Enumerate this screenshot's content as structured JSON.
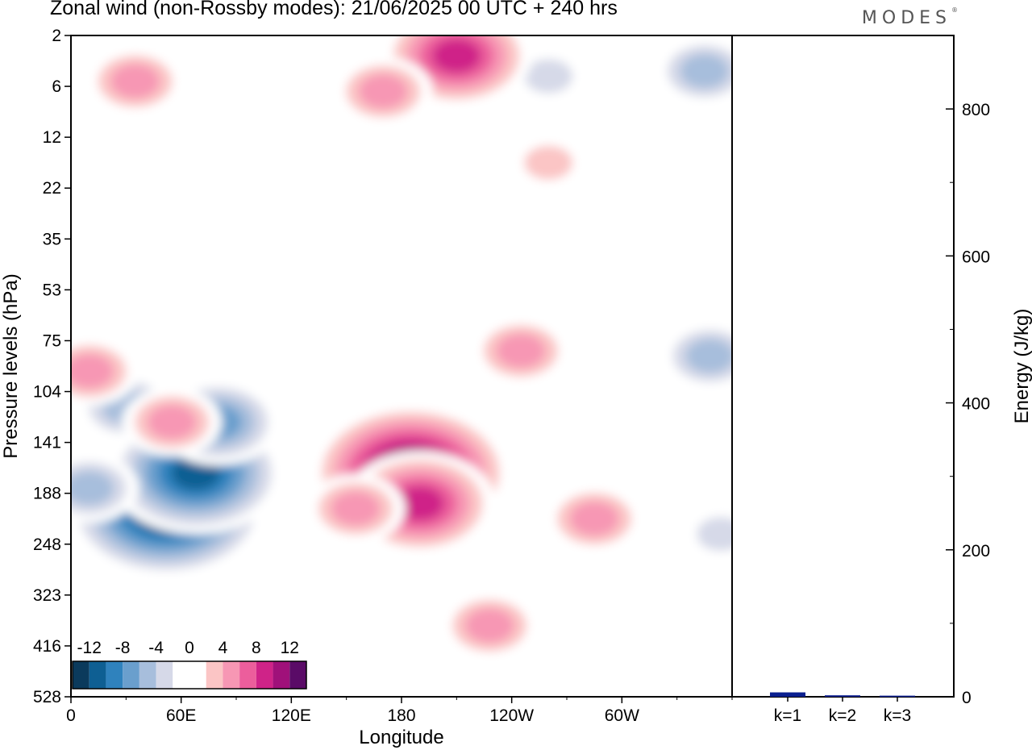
{
  "header": {
    "title": "Zonal wind (non-Rossby modes):  21/06/2025  00 UTC  + 240 hrs",
    "brand": "MODES",
    "brand_mark": "®"
  },
  "colors": {
    "levels": [
      -14,
      -12,
      -10,
      -8,
      -6,
      -4,
      -2,
      0,
      2,
      4,
      6,
      8,
      10,
      12,
      14
    ],
    "fills": [
      "#0b3a5c",
      "#0e5f93",
      "#2f82bd",
      "#6a9fcd",
      "#a7bedc",
      "#d6d9e8",
      "#ffffff",
      "#ffffff",
      "#fbc5c5",
      "#f797b4",
      "#ec5e9c",
      "#cf2388",
      "#a0117a",
      "#5a0b67"
    ],
    "bar": "#0a1f8f"
  },
  "chart_data": [
    {
      "type": "heatmap",
      "title": "Zonal wind (non-Rossby modes):  21/06/2025  00 UTC  + 240 hrs",
      "xlabel": "Longitude",
      "ylabel": "Pressure levels (hPa)",
      "x_ticks": [
        "0",
        "60E",
        "120E",
        "180",
        "120W",
        "60W"
      ],
      "x_tick_values": [
        0,
        60,
        120,
        180,
        240,
        300
      ],
      "xlim": [
        0,
        360
      ],
      "y_ticks": [
        "2",
        "6",
        "12",
        "22",
        "35",
        "53",
        "75",
        "104",
        "141",
        "188",
        "248",
        "323",
        "416",
        "528"
      ],
      "colorbar": {
        "labels": [
          "-12",
          "-8",
          "-4",
          "0",
          "4",
          "8",
          "12"
        ],
        "label_values": [
          -12,
          -8,
          -4,
          0,
          4,
          8,
          12
        ],
        "levels": [
          -14,
          -12,
          -10,
          -8,
          -6,
          -4,
          -2,
          0,
          2,
          4,
          6,
          8,
          10,
          12,
          14
        ]
      },
      "features": [
        {
          "lon": 52,
          "level": 9.3,
          "value": -14
        },
        {
          "lon": 68,
          "level": 8.6,
          "value": -12
        },
        {
          "lon": 80,
          "level": 7.6,
          "value": -8
        },
        {
          "lon": 30,
          "level": 7.3,
          "value": -6
        },
        {
          "lon": 10,
          "level": 8.9,
          "value": -6
        },
        {
          "lon": 115,
          "level": 10.5,
          "value": -2
        },
        {
          "lon": 160,
          "level": 12.5,
          "value": -2
        },
        {
          "lon": 252,
          "level": 12.0,
          "value": -2
        },
        {
          "lon": 354,
          "level": 9.8,
          "value": -4
        },
        {
          "lon": 348,
          "level": 6.3,
          "value": -6
        },
        {
          "lon": 345,
          "level": 0.7,
          "value": -6
        },
        {
          "lon": 260,
          "level": 0.8,
          "value": -4
        },
        {
          "lon": 170,
          "level": 2.0,
          "value": -2
        },
        {
          "lon": 20,
          "level": 2.5,
          "value": -2
        },
        {
          "lon": 185,
          "level": 8.6,
          "value": 14
        },
        {
          "lon": 190,
          "level": 9.2,
          "value": 10
        },
        {
          "lon": 155,
          "level": 9.3,
          "value": 6
        },
        {
          "lon": 228,
          "level": 11.6,
          "value": 6
        },
        {
          "lon": 285,
          "level": 9.5,
          "value": 6
        },
        {
          "lon": 245,
          "level": 6.2,
          "value": 6
        },
        {
          "lon": 210,
          "level": 0.4,
          "value": 10
        },
        {
          "lon": 170,
          "level": 1.1,
          "value": 6
        },
        {
          "lon": 35,
          "level": 0.9,
          "value": 6
        },
        {
          "lon": 260,
          "level": 2.5,
          "value": 4
        },
        {
          "lon": 55,
          "level": 7.6,
          "value": 6
        },
        {
          "lon": 10,
          "level": 6.6,
          "value": 6
        },
        {
          "lon": 80,
          "level": 13.0,
          "value": 2
        }
      ]
    },
    {
      "type": "bar",
      "ylabel": "Energy (J/kg)",
      "categories": [
        "k=1",
        "k=2",
        "k=3"
      ],
      "values": [
        6,
        2,
        1.5
      ],
      "ylim": [
        0,
        900
      ],
      "y_ticks": [
        "0",
        "200",
        "400",
        "600",
        "800"
      ],
      "y_tick_values": [
        0,
        200,
        400,
        600,
        800
      ]
    }
  ]
}
